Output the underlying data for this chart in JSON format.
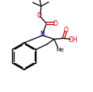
{
  "bg_color": "#ffffff",
  "bond_color": "#000000",
  "N_color": "#0000cc",
  "O_color": "#cc0000",
  "lw": 0.9,
  "fs": 5.2,
  "xlim": [
    0.0,
    1.0
  ],
  "ylim": [
    0.0,
    1.0
  ]
}
